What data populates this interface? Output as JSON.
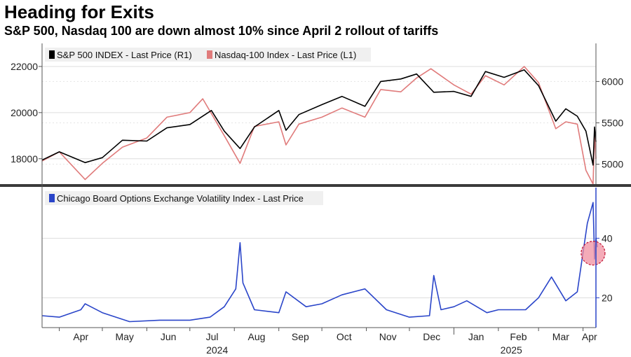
{
  "title": "Heading for Exits",
  "subtitle": "S&P 500, Nasdaq 100 are down almost 10% since April 2 rollout of tariffs",
  "colors": {
    "spx": "#000000",
    "ndx": "#e07b7b",
    "vix": "#2a45c9",
    "circle_fill": "#f08fa0",
    "circle_stroke": "#c01030",
    "legend_bg": "#f0f0f0"
  },
  "chart_data": [
    {
      "type": "line",
      "panel": "top",
      "x_range": [
        "2024-03-20",
        "2025-04-10"
      ],
      "left_axis": {
        "ylim": [
          16900,
          23000
        ],
        "ticks": [
          18000,
          20000,
          22000
        ],
        "tick_labels": [
          "18000",
          "20000",
          "22000"
        ]
      },
      "right_axis": {
        "ylim": [
          4760,
          6460
        ],
        "ticks": [
          5000,
          5500,
          6000
        ],
        "tick_labels": [
          "5000",
          "5500",
          "6000"
        ]
      },
      "grid": true,
      "legend_position": "top-left",
      "series": [
        {
          "name": "S&P 500 INDEX - Last Price (R1)",
          "axis": "right",
          "x": [
            "2024-03-20",
            "2024-04-01",
            "2024-04-19",
            "2024-05-01",
            "2024-05-15",
            "2024-06-01",
            "2024-06-15",
            "2024-07-01",
            "2024-07-16",
            "2024-07-25",
            "2024-08-05",
            "2024-08-15",
            "2024-09-01",
            "2024-09-06",
            "2024-09-15",
            "2024-10-01",
            "2024-10-15",
            "2024-10-31",
            "2024-11-11",
            "2024-11-25",
            "2024-12-06",
            "2024-12-18",
            "2025-01-01",
            "2025-01-13",
            "2025-01-23",
            "2025-02-05",
            "2025-02-19",
            "2025-03-01",
            "2025-03-13",
            "2025-03-20",
            "2025-03-28",
            "2025-04-03",
            "2025-04-08",
            "2025-04-09",
            "2025-04-10"
          ],
          "values": [
            5050,
            5150,
            5020,
            5080,
            5290,
            5280,
            5440,
            5480,
            5650,
            5400,
            5190,
            5450,
            5650,
            5410,
            5600,
            5720,
            5820,
            5700,
            6000,
            6030,
            6090,
            5870,
            5880,
            5820,
            6120,
            6050,
            6140,
            5950,
            5520,
            5670,
            5580,
            5400,
            4990,
            5450,
            5270
          ]
        },
        {
          "name": "Nasdaq-100 Index - Last Price (L1)",
          "axis": "left",
          "x": [
            "2024-03-20",
            "2024-04-01",
            "2024-04-19",
            "2024-05-01",
            "2024-05-15",
            "2024-06-01",
            "2024-06-15",
            "2024-07-01",
            "2024-07-10",
            "2024-07-25",
            "2024-08-05",
            "2024-08-15",
            "2024-09-01",
            "2024-09-06",
            "2024-09-15",
            "2024-10-01",
            "2024-10-15",
            "2024-10-31",
            "2024-11-11",
            "2024-11-25",
            "2024-12-06",
            "2024-12-16",
            "2025-01-01",
            "2025-01-13",
            "2025-01-23",
            "2025-02-05",
            "2025-02-19",
            "2025-03-01",
            "2025-03-13",
            "2025-03-20",
            "2025-03-28",
            "2025-04-03",
            "2025-04-08",
            "2025-04-09",
            "2025-04-10"
          ],
          "values": [
            17900,
            18300,
            17100,
            17800,
            18500,
            18900,
            19800,
            20000,
            20600,
            19000,
            17800,
            19400,
            19600,
            18600,
            19500,
            19800,
            20200,
            19800,
            21000,
            20900,
            21500,
            21900,
            21200,
            20800,
            21600,
            21200,
            22000,
            21300,
            19300,
            19600,
            19500,
            17500,
            16900,
            19100,
            18000
          ]
        }
      ]
    },
    {
      "type": "line",
      "panel": "bottom",
      "x_range": [
        "2024-03-20",
        "2025-04-10"
      ],
      "x_ticks": [
        "Apr",
        "May",
        "Jun",
        "Jul",
        "Aug",
        "Sep",
        "Oct",
        "Nov",
        "Dec",
        "Jan",
        "Feb",
        "Mar",
        "Apr"
      ],
      "year_labels": [
        "2024",
        "2025"
      ],
      "right_axis": {
        "ylim": [
          10,
          57
        ],
        "ticks": [
          20,
          40
        ],
        "tick_labels": [
          "20",
          "40"
        ]
      },
      "grid": true,
      "legend_position": "top-left",
      "series": [
        {
          "name": "Chicago Board Options Exchange Volatility Index - Last Price",
          "axis": "right",
          "x": [
            "2024-03-20",
            "2024-04-01",
            "2024-04-16",
            "2024-04-19",
            "2024-05-01",
            "2024-05-20",
            "2024-06-10",
            "2024-07-01",
            "2024-07-15",
            "2024-07-25",
            "2024-08-02",
            "2024-08-05",
            "2024-08-07",
            "2024-08-15",
            "2024-09-01",
            "2024-09-06",
            "2024-09-20",
            "2024-10-01",
            "2024-10-15",
            "2024-10-31",
            "2024-11-15",
            "2024-12-01",
            "2024-12-15",
            "2024-12-18",
            "2024-12-23",
            "2025-01-01",
            "2025-01-10",
            "2025-01-24",
            "2025-02-01",
            "2025-02-20",
            "2025-03-01",
            "2025-03-10",
            "2025-03-20",
            "2025-03-28",
            "2025-04-04",
            "2025-04-08",
            "2025-04-09",
            "2025-04-10",
            "2025-04-11"
          ],
          "values": [
            14,
            13.5,
            16,
            18,
            15,
            12,
            12.5,
            12.5,
            13.5,
            17,
            23,
            38.5,
            25,
            16,
            15,
            22,
            17,
            18,
            21,
            23,
            16,
            13.5,
            14,
            27.5,
            16,
            17,
            19,
            15,
            16,
            16,
            20,
            27,
            19,
            22,
            45,
            52,
            33,
            40,
            37
          ]
        }
      ],
      "highlight_circle": {
        "x": "2025-04-08",
        "y": 35
      }
    }
  ]
}
